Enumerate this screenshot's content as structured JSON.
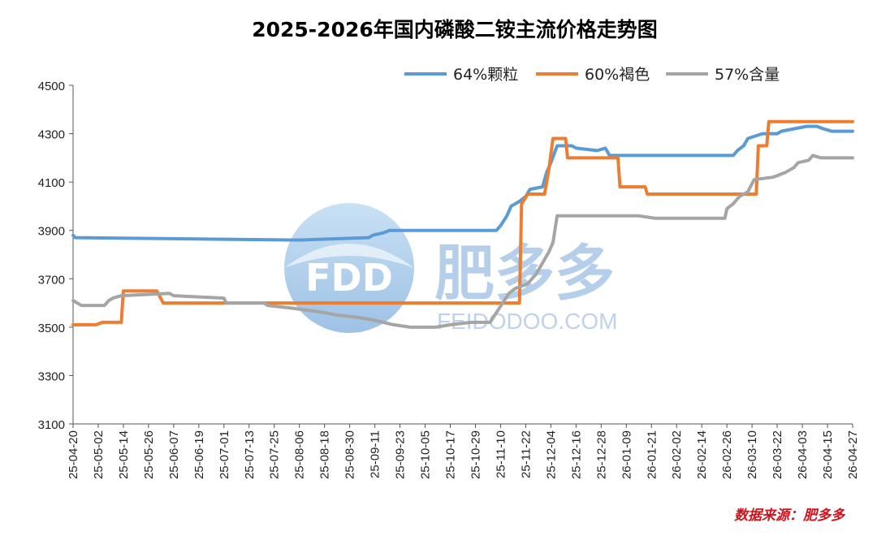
{
  "chart_data": {
    "type": "line",
    "title": "2025-2026年国内磷酸二铵主流价格走势图",
    "xlabel": "",
    "ylabel": "",
    "ylim": [
      3100,
      4500
    ],
    "yticks": [
      3100,
      3300,
      3500,
      3700,
      3900,
      4100,
      4300,
      4500
    ],
    "x_start": "2025-04-20",
    "x_end": "2026-04-27",
    "xticks": [
      "25-04-20",
      "25-05-02",
      "25-05-14",
      "25-05-26",
      "25-06-07",
      "25-06-19",
      "25-07-01",
      "25-07-13",
      "25-07-25",
      "25-08-06",
      "25-08-18",
      "25-08-30",
      "25-09-11",
      "25-09-23",
      "25-10-05",
      "25-10-17",
      "25-10-29",
      "25-11-10",
      "25-11-22",
      "25-12-04",
      "25-12-16",
      "25-12-28",
      "26-01-09",
      "26-01-21",
      "26-02-02",
      "26-02-14",
      "26-02-26",
      "26-03-10",
      "26-03-22",
      "26-04-03",
      "26-04-15",
      "26-04-27"
    ],
    "legend_position": "top-right",
    "series": [
      {
        "name": "64%颗粒",
        "color": "#5b9bd5",
        "points": [
          [
            "2025-04-20",
            3880
          ],
          [
            "2025-04-21",
            3870
          ],
          [
            "2025-08-06",
            3860
          ],
          [
            "2025-09-08",
            3870
          ],
          [
            "2025-09-10",
            3880
          ],
          [
            "2025-09-15",
            3890
          ],
          [
            "2025-09-18",
            3900
          ],
          [
            "2025-11-08",
            3900
          ],
          [
            "2025-11-10",
            3920
          ],
          [
            "2025-11-13",
            3960
          ],
          [
            "2025-11-15",
            4000
          ],
          [
            "2025-11-19",
            4020
          ],
          [
            "2025-11-22",
            4040
          ],
          [
            "2025-11-24",
            4070
          ],
          [
            "2025-11-30",
            4080
          ],
          [
            "2025-12-02",
            4140
          ],
          [
            "2025-12-04",
            4180
          ],
          [
            "2025-12-07",
            4250
          ],
          [
            "2025-12-14",
            4250
          ],
          [
            "2025-12-16",
            4240
          ],
          [
            "2025-12-26",
            4230
          ],
          [
            "2025-12-30",
            4240
          ],
          [
            "2026-01-01",
            4210
          ],
          [
            "2026-03-01",
            4210
          ],
          [
            "2026-03-03",
            4230
          ],
          [
            "2026-03-06",
            4250
          ],
          [
            "2026-03-08",
            4280
          ],
          [
            "2026-03-15",
            4300
          ],
          [
            "2026-03-22",
            4300
          ],
          [
            "2026-03-24",
            4310
          ],
          [
            "2026-03-30",
            4320
          ],
          [
            "2026-04-05",
            4330
          ],
          [
            "2026-04-10",
            4330
          ],
          [
            "2026-04-13",
            4320
          ],
          [
            "2026-04-17",
            4310
          ],
          [
            "2026-04-27",
            4310
          ]
        ]
      },
      {
        "name": "60%褐色",
        "color": "#ed7d31",
        "points": [
          [
            "2025-04-20",
            3510
          ],
          [
            "2025-05-01",
            3510
          ],
          [
            "2025-05-04",
            3520
          ],
          [
            "2025-05-13",
            3520
          ],
          [
            "2025-05-14",
            3650
          ],
          [
            "2025-05-30",
            3650
          ],
          [
            "2025-06-02",
            3600
          ],
          [
            "2025-11-19",
            3600
          ],
          [
            "2025-11-20",
            4010
          ],
          [
            "2025-11-23",
            4050
          ],
          [
            "2025-12-01",
            4050
          ],
          [
            "2025-12-03",
            4150
          ],
          [
            "2025-12-05",
            4280
          ],
          [
            "2025-12-11",
            4280
          ],
          [
            "2025-12-12",
            4200
          ],
          [
            "2026-01-05",
            4200
          ],
          [
            "2026-01-06",
            4080
          ],
          [
            "2026-01-18",
            4080
          ],
          [
            "2026-01-19",
            4050
          ],
          [
            "2026-03-12",
            4050
          ],
          [
            "2026-03-13",
            4250
          ],
          [
            "2026-03-17",
            4250
          ],
          [
            "2026-03-18",
            4350
          ],
          [
            "2026-04-27",
            4350
          ]
        ]
      },
      {
        "name": "57%含量",
        "color": "#a5a5a5",
        "points": [
          [
            "2025-04-20",
            3610
          ],
          [
            "2025-04-22",
            3600
          ],
          [
            "2025-04-24",
            3590
          ],
          [
            "2025-05-05",
            3590
          ],
          [
            "2025-05-07",
            3610
          ],
          [
            "2025-05-09",
            3620
          ],
          [
            "2025-05-13",
            3630
          ],
          [
            "2025-06-05",
            3640
          ],
          [
            "2025-06-07",
            3630
          ],
          [
            "2025-07-01",
            3620
          ],
          [
            "2025-07-02",
            3600
          ],
          [
            "2025-07-20",
            3600
          ],
          [
            "2025-07-22",
            3590
          ],
          [
            "2025-08-01",
            3580
          ],
          [
            "2025-08-10",
            3570
          ],
          [
            "2025-08-18",
            3560
          ],
          [
            "2025-08-24",
            3550
          ],
          [
            "2025-09-03",
            3540
          ],
          [
            "2025-09-10",
            3530
          ],
          [
            "2025-09-20",
            3510
          ],
          [
            "2025-09-28",
            3500
          ],
          [
            "2025-10-10",
            3500
          ],
          [
            "2025-10-17",
            3510
          ],
          [
            "2025-10-27",
            3520
          ],
          [
            "2025-11-05",
            3520
          ],
          [
            "2025-11-08",
            3560
          ],
          [
            "2025-11-11",
            3600
          ],
          [
            "2025-11-14",
            3640
          ],
          [
            "2025-11-17",
            3660
          ],
          [
            "2025-11-23",
            3680
          ],
          [
            "2025-11-27",
            3720
          ],
          [
            "2025-12-01",
            3780
          ],
          [
            "2025-12-03",
            3810
          ],
          [
            "2025-12-05",
            3850
          ],
          [
            "2025-12-07",
            3960
          ],
          [
            "2025-12-20",
            3960
          ],
          [
            "2025-12-25",
            3960
          ],
          [
            "2026-01-15",
            3960
          ],
          [
            "2026-01-23",
            3950
          ],
          [
            "2026-02-25",
            3950
          ],
          [
            "2026-02-26",
            3990
          ],
          [
            "2026-03-01",
            4010
          ],
          [
            "2026-03-04",
            4040
          ],
          [
            "2026-03-08",
            4060
          ],
          [
            "2026-03-11",
            4110
          ],
          [
            "2026-03-20",
            4120
          ],
          [
            "2026-03-26",
            4140
          ],
          [
            "2026-03-30",
            4160
          ],
          [
            "2026-04-01",
            4180
          ],
          [
            "2026-04-06",
            4190
          ],
          [
            "2026-04-08",
            4210
          ],
          [
            "2026-04-12",
            4200
          ],
          [
            "2026-04-27",
            4200
          ]
        ]
      }
    ],
    "source": "数据来源：肥多多"
  },
  "watermark": {
    "logo_text": "FDD",
    "brand": "肥多多",
    "domain": "FEIDODOO.COM"
  }
}
